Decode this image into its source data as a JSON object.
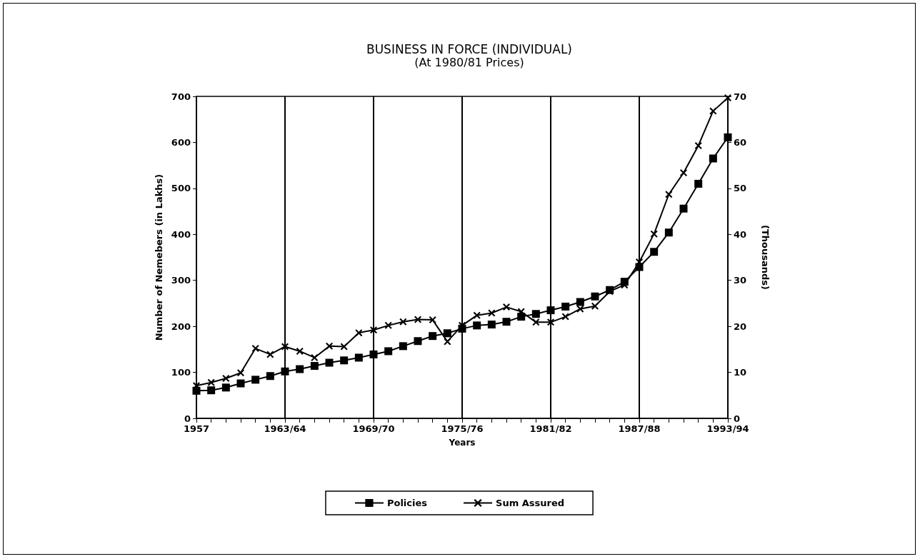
{
  "chart_data": {
    "type": "line",
    "title": "BUSINESS IN FORCE (INDIVIDUAL)",
    "subtitle": "(At 1980/81 Prices)",
    "xlabel": "Years",
    "ylabel": "Number of Nemebers (in Lakhs)",
    "y2label": "(Thousands)",
    "categories": [
      "1957",
      null,
      null,
      null,
      null,
      null,
      "1963/64",
      null,
      null,
      null,
      null,
      null,
      "1969/70",
      null,
      null,
      null,
      null,
      null,
      "1975/76",
      null,
      null,
      null,
      null,
      null,
      "1981/82",
      null,
      null,
      null,
      null,
      null,
      "1987/88",
      null,
      null,
      null,
      null,
      null,
      "1993/94"
    ],
    "series": [
      {
        "name": "Policies",
        "color": "#000000",
        "marker": "square",
        "values": [
          60,
          61,
          67,
          76,
          84,
          92,
          102,
          107,
          114,
          121,
          126,
          132,
          139,
          146,
          157,
          168,
          179,
          185,
          195,
          202,
          204,
          210,
          221,
          227,
          235,
          243,
          253,
          265,
          279,
          297,
          329,
          362,
          404,
          456,
          510,
          565,
          611
        ]
      },
      {
        "name": "Sum Assured",
        "color": "#000000",
        "marker": "cross",
        "axis": "y2",
        "values": [
          7.1,
          7.8,
          8.7,
          9.9,
          15.2,
          13.9,
          15.6,
          14.6,
          13.2,
          15.7,
          15.6,
          18.6,
          19.2,
          20.2,
          21.0,
          21.5,
          21.4,
          16.7,
          20.2,
          22.4,
          22.9,
          24.2,
          23.2,
          20.9,
          20.9,
          22.1,
          23.8,
          24.4,
          27.6,
          29.0,
          34.0,
          40.1,
          48.7,
          53.4,
          59.3,
          66.8,
          69.7
        ]
      }
    ],
    "ylim": [
      0,
      700
    ],
    "yticks": [
      0,
      100,
      200,
      300,
      400,
      500,
      600,
      700
    ],
    "y2lim": [
      0,
      70
    ],
    "y2ticks": [
      0,
      10,
      20,
      30,
      40,
      50,
      60,
      70
    ],
    "grid": "x",
    "legend": "bottom",
    "line_style": "solid"
  }
}
